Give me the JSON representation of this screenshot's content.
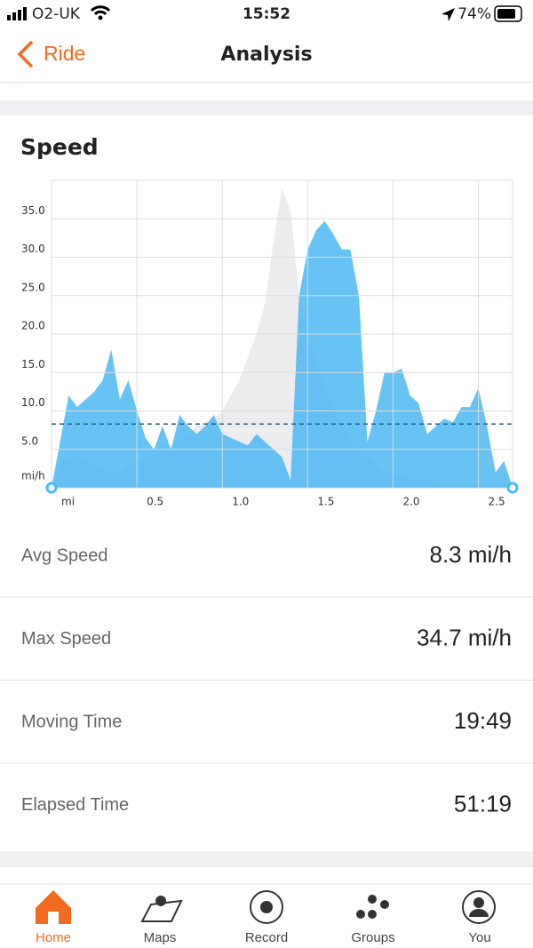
{
  "status_bar": {
    "carrier": "O2-UK",
    "time": "15:52",
    "battery": "74%"
  },
  "nav": {
    "back": "Ride",
    "title": "Analysis"
  },
  "chart_data": {
    "type": "area",
    "title": "Speed",
    "y_label": "mi/h",
    "x": [
      0,
      0.05,
      0.1,
      0.15,
      0.2,
      0.25,
      0.3,
      0.35,
      0.4,
      0.45,
      0.5,
      0.55,
      0.6,
      0.65,
      0.7,
      0.75,
      0.8,
      0.85,
      0.9,
      0.95,
      1.0,
      1.05,
      1.1,
      1.15,
      1.2,
      1.25,
      1.3,
      1.35,
      1.4,
      1.45,
      1.5,
      1.55,
      1.6,
      1.65,
      1.7,
      1.75,
      1.8,
      1.85,
      1.9,
      1.95,
      2.0,
      2.05,
      2.1,
      2.15,
      2.2,
      2.25,
      2.3,
      2.35,
      2.4,
      2.45,
      2.5,
      2.55,
      2.6,
      2.65,
      2.7
    ],
    "series": [
      {
        "color": "#ececee",
        "values": [
          0,
          3,
          4,
          4,
          3.5,
          3,
          2.5,
          2,
          2,
          3,
          3,
          4,
          5,
          5.5,
          5.5,
          6,
          7,
          8,
          8.5,
          9,
          10,
          12,
          14,
          17,
          20,
          24,
          32,
          39,
          36,
          25,
          20,
          16,
          13,
          10,
          8,
          6,
          5,
          4,
          3,
          2,
          2,
          1.5,
          1,
          1,
          1,
          1,
          0.5,
          0.5,
          0.5,
          0.5,
          0.5,
          0.5,
          0.5,
          0.5,
          0
        ]
      },
      {
        "color": "#4cb9f2",
        "values": [
          0,
          6,
          12,
          10.5,
          11.5,
          12.5,
          14,
          18,
          11.5,
          14,
          10,
          6.5,
          5,
          8,
          5,
          9.5,
          8,
          7,
          8,
          9.5,
          7,
          6.5,
          6,
          5.5,
          7,
          6,
          5,
          4,
          1,
          25,
          31,
          33.5,
          34.7,
          33,
          31,
          31,
          25,
          6,
          10,
          15,
          15,
          15.5,
          12,
          11,
          7,
          8,
          9,
          8.5,
          10.5,
          10.5,
          13,
          8,
          2,
          3.5,
          0
        ]
      }
    ],
    "avg_line": 8.3,
    "avg_color": "#1f5f86",
    "xlim": [
      0,
      2.7
    ],
    "ylim": [
      0,
      40
    ],
    "xticks": [
      {
        "value": 0,
        "label": "mi"
      },
      0.5,
      {
        "value": 1,
        "label": "1.0"
      },
      1.5,
      {
        "value": 2,
        "label": "2.0"
      },
      2.5
    ],
    "yticks": [
      {
        "value": 5,
        "label": "5.0"
      },
      {
        "value": 10,
        "label": "10.0"
      },
      {
        "value": 15,
        "label": "15.0"
      },
      {
        "value": 20,
        "label": "20.0"
      },
      {
        "value": 25,
        "label": "25.0"
      },
      {
        "value": 30,
        "label": "30.0"
      },
      {
        "value": 35,
        "label": "35.0"
      }
    ],
    "grid": true
  },
  "stats": [
    {
      "label": "Avg Speed",
      "value": "8.3 mi/h"
    },
    {
      "label": "Max Speed",
      "value": "34.7 mi/h"
    },
    {
      "label": "Moving Time",
      "value": "19:49"
    },
    {
      "label": "Elapsed Time",
      "value": "51:19"
    }
  ],
  "tabs": [
    "Home",
    "Maps",
    "Record",
    "Groups",
    "You"
  ]
}
